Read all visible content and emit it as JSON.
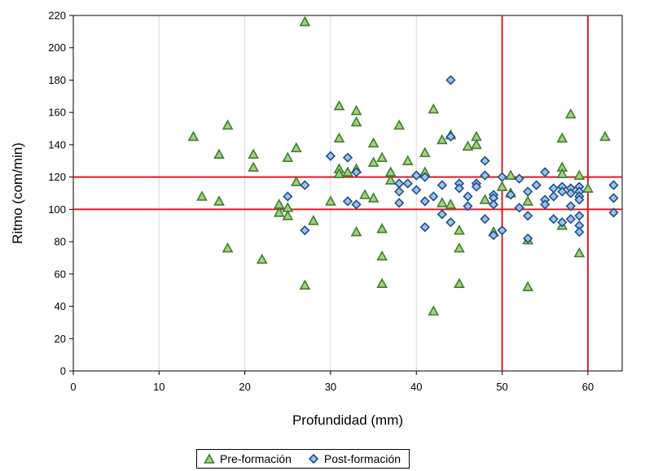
{
  "chart_data": {
    "type": "scatter",
    "xlabel": "Profundidad (mm)",
    "ylabel": "Ritmo (com/min)",
    "xlim": [
      0,
      64
    ],
    "ylim": [
      0,
      220
    ],
    "xticks": [
      0,
      10,
      20,
      30,
      40,
      50,
      60
    ],
    "yticks": [
      0,
      20,
      40,
      60,
      80,
      100,
      120,
      140,
      160,
      180,
      200,
      220
    ],
    "grid": "vertical",
    "legend_position": "bottom",
    "reference_lines": {
      "horizontal": [
        100,
        120
      ],
      "vertical": [
        50,
        60
      ],
      "color": "#d0202a"
    },
    "series": [
      {
        "name": "Pre-formación",
        "marker": "triangle",
        "stroke": "#3d7f2c",
        "fill": "#a6cf84",
        "points": [
          [
            14,
            145
          ],
          [
            15,
            108
          ],
          [
            17,
            134
          ],
          [
            17,
            105
          ],
          [
            18,
            152
          ],
          [
            18,
            76
          ],
          [
            21,
            134
          ],
          [
            21,
            126
          ],
          [
            22,
            69
          ],
          [
            24,
            103
          ],
          [
            24,
            98
          ],
          [
            25,
            132
          ],
          [
            25,
            101
          ],
          [
            25,
            96
          ],
          [
            26,
            138
          ],
          [
            26,
            117
          ],
          [
            27,
            216
          ],
          [
            27,
            53
          ],
          [
            28,
            93
          ],
          [
            30,
            105
          ],
          [
            31,
            164
          ],
          [
            31,
            144
          ],
          [
            31,
            125
          ],
          [
            31,
            122
          ],
          [
            32,
            123
          ],
          [
            33,
            161
          ],
          [
            33,
            154
          ],
          [
            33,
            125
          ],
          [
            33,
            86
          ],
          [
            34,
            109
          ],
          [
            35,
            141
          ],
          [
            35,
            129
          ],
          [
            35,
            107
          ],
          [
            36,
            132
          ],
          [
            36,
            88
          ],
          [
            36,
            71
          ],
          [
            36,
            54
          ],
          [
            37,
            123
          ],
          [
            37,
            118
          ],
          [
            38,
            152
          ],
          [
            39,
            130
          ],
          [
            41,
            135
          ],
          [
            41,
            123
          ],
          [
            42,
            162
          ],
          [
            42,
            37
          ],
          [
            43,
            143
          ],
          [
            43,
            104
          ],
          [
            44,
            146
          ],
          [
            44,
            103
          ],
          [
            45,
            87
          ],
          [
            45,
            76
          ],
          [
            45,
            54
          ],
          [
            46,
            139
          ],
          [
            47,
            145
          ],
          [
            47,
            140
          ],
          [
            48,
            106
          ],
          [
            49,
            86
          ],
          [
            50,
            114
          ],
          [
            51,
            121
          ],
          [
            51,
            110
          ],
          [
            53,
            105
          ],
          [
            53,
            81
          ],
          [
            53,
            52
          ],
          [
            57,
            144
          ],
          [
            57,
            126
          ],
          [
            57,
            122
          ],
          [
            57,
            90
          ],
          [
            58,
            159
          ],
          [
            59,
            121
          ],
          [
            59,
            73
          ],
          [
            60,
            113
          ],
          [
            62,
            145
          ]
        ]
      },
      {
        "name": "Post-formación",
        "marker": "diamond",
        "stroke": "#1f4e8c",
        "fill": "#9dc3e6",
        "points": [
          [
            25,
            108
          ],
          [
            27,
            115
          ],
          [
            27,
            87
          ],
          [
            30,
            133
          ],
          [
            32,
            132
          ],
          [
            32,
            105
          ],
          [
            33,
            103
          ],
          [
            33,
            123
          ],
          [
            38,
            116
          ],
          [
            38,
            111
          ],
          [
            38,
            104
          ],
          [
            39,
            116
          ],
          [
            40,
            121
          ],
          [
            40,
            112
          ],
          [
            41,
            120
          ],
          [
            41,
            105
          ],
          [
            41,
            89
          ],
          [
            42,
            108
          ],
          [
            43,
            115
          ],
          [
            43,
            97
          ],
          [
            44,
            180
          ],
          [
            44,
            145
          ],
          [
            44,
            92
          ],
          [
            45,
            116
          ],
          [
            45,
            113
          ],
          [
            46,
            108
          ],
          [
            46,
            102
          ],
          [
            47,
            116
          ],
          [
            47,
            114
          ],
          [
            48,
            130
          ],
          [
            48,
            121
          ],
          [
            48,
            94
          ],
          [
            49,
            109
          ],
          [
            49,
            107
          ],
          [
            49,
            103
          ],
          [
            49,
            84
          ],
          [
            50,
            120
          ],
          [
            50,
            87
          ],
          [
            51,
            109
          ],
          [
            52,
            119
          ],
          [
            52,
            101
          ],
          [
            53,
            111
          ],
          [
            53,
            96
          ],
          [
            53,
            82
          ],
          [
            54,
            115
          ],
          [
            55,
            123
          ],
          [
            55,
            106
          ],
          [
            55,
            103
          ],
          [
            56,
            113
          ],
          [
            56,
            108
          ],
          [
            56,
            94
          ],
          [
            57,
            114
          ],
          [
            57,
            111
          ],
          [
            57,
            92
          ],
          [
            58,
            113
          ],
          [
            58,
            110
          ],
          [
            58,
            102
          ],
          [
            58,
            94
          ],
          [
            59,
            114
          ],
          [
            59,
            111
          ],
          [
            59,
            108
          ],
          [
            59,
            106
          ],
          [
            59,
            96
          ],
          [
            59,
            90
          ],
          [
            59,
            86
          ],
          [
            63,
            115
          ],
          [
            63,
            107
          ],
          [
            63,
            98
          ]
        ]
      }
    ]
  }
}
